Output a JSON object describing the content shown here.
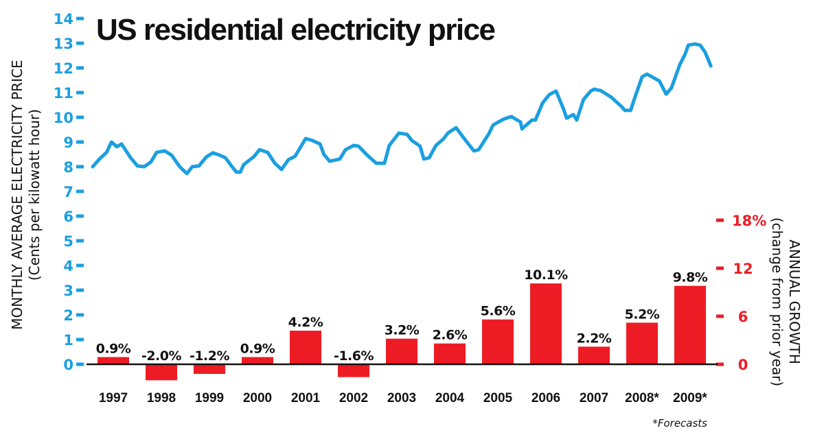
{
  "chart_data": {
    "type": "bar+line",
    "title": "US residential electricity price",
    "left_axis": {
      "label": "MONTHLY AVERAGE ELECTRICITY PRICE",
      "sublabel": "(Cents per kilowatt hour)",
      "range": [
        0,
        14
      ],
      "ticks": [
        "0",
        "1",
        "2",
        "3",
        "4",
        "5",
        "6",
        "7",
        "8",
        "9",
        "10",
        "11",
        "12",
        "13",
        "14"
      ],
      "color": "#1a9fe0"
    },
    "right_axis": {
      "label": "ANNUAL GROWTH",
      "sublabel": "(change from prior year)",
      "range": [
        0,
        18
      ],
      "ticks": [
        {
          "value": 0,
          "label": "0"
        },
        {
          "value": 6,
          "label": "6"
        },
        {
          "value": 12,
          "label": "12"
        },
        {
          "value": 18,
          "label": "18%"
        }
      ],
      "color": "#ed1c24"
    },
    "categories": [
      "1997",
      "1998",
      "1999",
      "2000",
      "2001",
      "2002",
      "2003",
      "2004",
      "2005",
      "2006",
      "2007",
      "2008*",
      "2009*"
    ],
    "bar_series": {
      "name": "Annual growth (%)",
      "values": [
        0.9,
        -2.0,
        -1.2,
        0.9,
        4.2,
        -1.6,
        3.2,
        2.6,
        5.6,
        10.1,
        2.2,
        5.2,
        9.8
      ],
      "labels": [
        "0.9%",
        "-2.0%",
        "-1.2%",
        "0.9%",
        "4.2%",
        "-1.6%",
        "3.2%",
        "2.6%",
        "5.6%",
        "10.1%",
        "2.2%",
        "5.2%",
        "9.8%"
      ],
      "color": "#ed1c24"
    },
    "line_series": {
      "name": "Monthly average electricity price (cents/kWh)",
      "color": "#1a9fe0",
      "points": [
        [
          1997.0,
          8.0
        ],
        [
          1997.14,
          8.31
        ],
        [
          1997.29,
          8.58
        ],
        [
          1997.39,
          9.0
        ],
        [
          1997.5,
          8.81
        ],
        [
          1997.6,
          8.92
        ],
        [
          1997.79,
          8.36
        ],
        [
          1997.93,
          8.03
        ],
        [
          1998.07,
          8.0
        ],
        [
          1998.21,
          8.19
        ],
        [
          1998.33,
          8.58
        ],
        [
          1998.5,
          8.64
        ],
        [
          1998.64,
          8.47
        ],
        [
          1998.81,
          8.0
        ],
        [
          1998.96,
          7.72
        ],
        [
          1999.07,
          8.0
        ],
        [
          1999.21,
          8.03
        ],
        [
          1999.36,
          8.39
        ],
        [
          1999.5,
          8.56
        ],
        [
          1999.64,
          8.47
        ],
        [
          1999.76,
          8.36
        ],
        [
          1999.9,
          8.0
        ],
        [
          1999.99,
          7.78
        ],
        [
          2000.07,
          7.78
        ],
        [
          2000.14,
          8.08
        ],
        [
          2000.36,
          8.42
        ],
        [
          2000.47,
          8.69
        ],
        [
          2000.64,
          8.58
        ],
        [
          2000.79,
          8.14
        ],
        [
          2000.93,
          7.89
        ],
        [
          2001.07,
          8.28
        ],
        [
          2001.21,
          8.42
        ],
        [
          2001.43,
          9.14
        ],
        [
          2001.57,
          9.06
        ],
        [
          2001.73,
          8.92
        ],
        [
          2001.81,
          8.5
        ],
        [
          2001.93,
          8.22
        ],
        [
          2002.14,
          8.31
        ],
        [
          2002.26,
          8.69
        ],
        [
          2002.43,
          8.86
        ],
        [
          2002.53,
          8.83
        ],
        [
          2002.71,
          8.47
        ],
        [
          2002.9,
          8.14
        ],
        [
          2003.07,
          8.14
        ],
        [
          2003.17,
          8.86
        ],
        [
          2003.37,
          9.36
        ],
        [
          2003.54,
          9.31
        ],
        [
          2003.64,
          9.06
        ],
        [
          2003.81,
          8.83
        ],
        [
          2003.89,
          8.31
        ],
        [
          2004.0,
          8.36
        ],
        [
          2004.14,
          8.86
        ],
        [
          2004.29,
          9.11
        ],
        [
          2004.39,
          9.36
        ],
        [
          2004.56,
          9.58
        ],
        [
          2004.71,
          9.19
        ],
        [
          2004.93,
          8.64
        ],
        [
          2005.03,
          8.69
        ],
        [
          2005.24,
          9.33
        ],
        [
          2005.33,
          9.69
        ],
        [
          2005.54,
          9.92
        ],
        [
          2005.71,
          10.03
        ],
        [
          2005.9,
          9.81
        ],
        [
          2005.93,
          9.53
        ],
        [
          2006.14,
          9.89
        ],
        [
          2006.21,
          9.89
        ],
        [
          2006.36,
          10.58
        ],
        [
          2006.5,
          10.92
        ],
        [
          2006.64,
          11.06
        ],
        [
          2006.79,
          10.36
        ],
        [
          2006.86,
          9.97
        ],
        [
          2007.0,
          10.11
        ],
        [
          2007.07,
          9.89
        ],
        [
          2007.21,
          10.72
        ],
        [
          2007.36,
          11.06
        ],
        [
          2007.43,
          11.14
        ],
        [
          2007.57,
          11.08
        ],
        [
          2007.79,
          10.81
        ],
        [
          2008.0,
          10.44
        ],
        [
          2008.07,
          10.28
        ],
        [
          2008.19,
          10.28
        ],
        [
          2008.29,
          10.86
        ],
        [
          2008.43,
          11.64
        ],
        [
          2008.53,
          11.75
        ],
        [
          2008.79,
          11.47
        ],
        [
          2008.93,
          10.94
        ],
        [
          2009.04,
          11.19
        ],
        [
          2009.21,
          12.11
        ],
        [
          2009.33,
          12.58
        ],
        [
          2009.39,
          12.92
        ],
        [
          2009.53,
          12.97
        ],
        [
          2009.64,
          12.92
        ],
        [
          2009.74,
          12.64
        ],
        [
          2009.86,
          12.08
        ]
      ]
    },
    "footnote": "*Forecasts",
    "grid": false,
    "legend": "none"
  }
}
